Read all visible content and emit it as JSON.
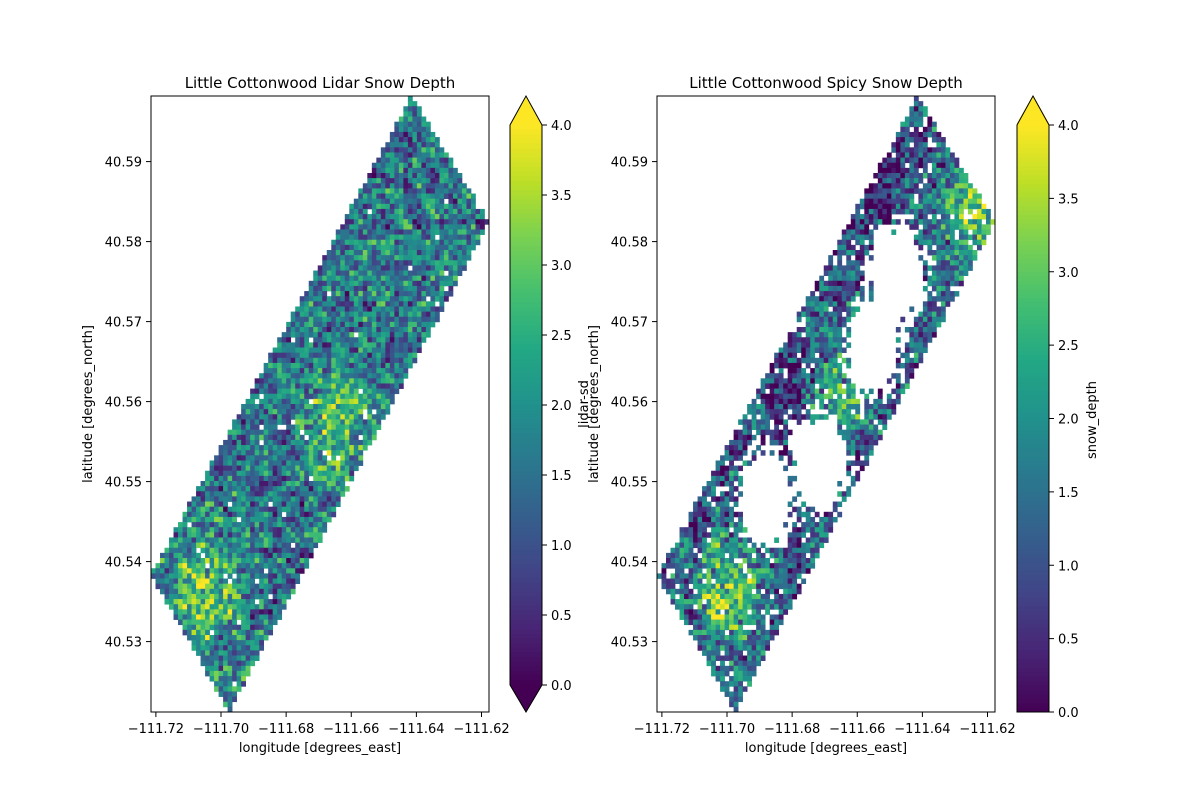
{
  "chart_data": [
    {
      "type": "heatmap",
      "title": "Little Cottonwood Lidar Snow Depth",
      "xlabel": "longitude [degrees_east]",
      "ylabel": "latitude [degrees_north]",
      "colorbar_label": "lidar-sd",
      "xlim": [
        -111.7215,
        -111.6177
      ],
      "ylim": [
        40.5212,
        40.5982
      ],
      "xticks": [
        -111.72,
        -111.7,
        -111.68,
        -111.66,
        -111.64,
        -111.62
      ],
      "xtick_labels": [
        "−111.72",
        "−111.70",
        "−111.68",
        "−111.66",
        "−111.64",
        "−111.62"
      ],
      "yticks": [
        40.53,
        40.54,
        40.55,
        40.56,
        40.57,
        40.58,
        40.59
      ],
      "ytick_labels": [
        "40.53",
        "40.54",
        "40.55",
        "40.56",
        "40.57",
        "40.58",
        "40.59"
      ],
      "colormap": "viridis",
      "vmin": 0.0,
      "vmax": 4.0,
      "colorbar_extend": "both",
      "colorbar_ticks": [
        "0.0",
        "0.5",
        "1.0",
        "1.5",
        "2.0",
        "2.5",
        "3.0",
        "3.5",
        "4.0"
      ],
      "swath_corners": {
        "top": [
          -111.6415,
          40.5982
        ],
        "right": [
          -111.6177,
          40.5825
        ],
        "bottom": [
          -111.6975,
          40.5212
        ],
        "left": [
          -111.7215,
          40.5384
        ]
      },
      "grid_resolution": [
        75,
        120
      ],
      "mean_value": 1.6,
      "high_zones": [
        {
          "lon": -111.705,
          "lat": 40.536,
          "value": 3.2
        },
        {
          "lon": -111.665,
          "lat": 40.557,
          "value": 2.8
        }
      ],
      "low_zones": []
    },
    {
      "type": "heatmap",
      "title": "Little Cottonwood Spicy Snow Depth",
      "xlabel": "longitude [degrees_east]",
      "ylabel": "latitude [degrees_north]",
      "colorbar_label": "snow_depth",
      "xlim": [
        -111.7215,
        -111.6177
      ],
      "ylim": [
        40.5212,
        40.5982
      ],
      "xticks": [
        -111.72,
        -111.7,
        -111.68,
        -111.66,
        -111.64,
        -111.62
      ],
      "xtick_labels": [
        "−111.72",
        "−111.70",
        "−111.68",
        "−111.66",
        "−111.64",
        "−111.62"
      ],
      "yticks": [
        40.53,
        40.54,
        40.55,
        40.56,
        40.57,
        40.58,
        40.59
      ],
      "ytick_labels": [
        "40.53",
        "40.54",
        "40.55",
        "40.56",
        "40.57",
        "40.58",
        "40.59"
      ],
      "colormap": "viridis",
      "vmin": 0.0,
      "vmax": 4.0,
      "colorbar_extend": "neither",
      "colorbar_ticks": [
        "0.0",
        "0.5",
        "1.0",
        "1.5",
        "2.0",
        "2.5",
        "3.0",
        "3.5",
        "4.0"
      ],
      "swath_corners": {
        "top": [
          -111.6415,
          40.5982
        ],
        "right": [
          -111.6177,
          40.5825
        ],
        "bottom": [
          -111.6975,
          40.5212
        ],
        "left": [
          -111.7215,
          40.5384
        ]
      },
      "grid_resolution": [
        75,
        120
      ],
      "mean_value": 1.2,
      "high_zones": [
        {
          "lon": -111.7,
          "lat": 40.536,
          "value": 3.3
        },
        {
          "lon": -111.667,
          "lat": 40.561,
          "value": 2.6
        },
        {
          "lon": -111.625,
          "lat": 40.583,
          "value": 3.0
        }
      ],
      "low_zones": [
        {
          "lon": -111.68,
          "lat": 40.56,
          "value": 0.3
        },
        {
          "lon": -111.655,
          "lat": 40.588,
          "value": 0.3
        }
      ],
      "nodata_zones": [
        {
          "lon": -111.672,
          "lat": 40.5525
        },
        {
          "lon": -111.655,
          "lat": 40.567
        },
        {
          "lon": -111.688,
          "lat": 40.548
        },
        {
          "lon": -111.648,
          "lat": 40.576
        }
      ]
    }
  ]
}
